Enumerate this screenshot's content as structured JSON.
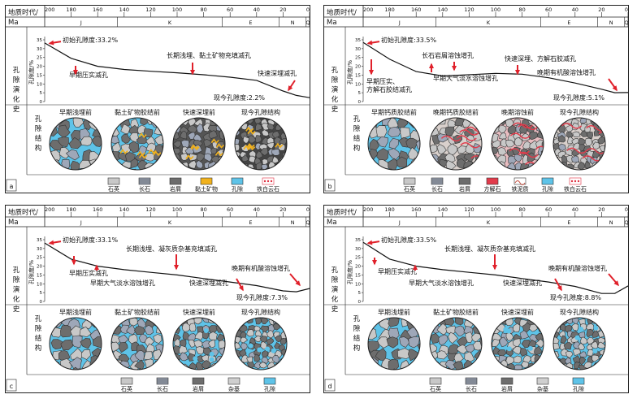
{
  "axis": {
    "era_label": "地质时代/",
    "ma_label": "Ma",
    "ticks": [
      "200",
      "180",
      "160",
      "140",
      "120",
      "100",
      "80",
      "60",
      "40",
      "20",
      "0"
    ],
    "periods": [
      "J",
      "K",
      "E",
      "N",
      "Q"
    ],
    "porosity_label": "孔隙度/%",
    "porosity_ticks": [
      "35",
      "30",
      "25",
      "20",
      "15",
      "10",
      "5",
      "0"
    ],
    "evolution_label": "孔隙演化史",
    "structure_label": "孔隙结构"
  },
  "panels": [
    {
      "letter": "a",
      "initial": "初始孔隙度:33.2%",
      "final": "现今孔隙度:2.2%",
      "porosity_curve": [
        [
          200,
          33.2
        ],
        [
          180,
          24.5
        ],
        [
          160,
          20
        ],
        [
          140,
          18.2
        ],
        [
          120,
          17.2
        ],
        [
          100,
          16.3
        ],
        [
          80,
          15.2
        ],
        [
          60,
          13.8
        ],
        [
          40,
          12
        ],
        [
          20,
          6
        ],
        [
          10,
          3.5
        ],
        [
          0,
          2.2
        ]
      ],
      "annotations": [
        "早期压实减孔",
        "长期浅埋、黏土矿物充填减孔",
        "快速深埋减孔"
      ],
      "stages": [
        "早期浅埋前",
        "黏土矿物胶结前",
        "快速深埋前",
        "现今孔隙结构"
      ],
      "legend": [
        "石英",
        "长石",
        "岩屑",
        "黏土矿物",
        "孔隙",
        "铁白云石"
      ]
    },
    {
      "letter": "b",
      "initial": "初始孔隙度:33.5%",
      "final": "现今孔隙度:5.1%",
      "porosity_curve": [
        [
          200,
          33.5
        ],
        [
          180,
          24
        ],
        [
          160,
          17
        ],
        [
          140,
          14.5
        ],
        [
          120,
          15.2
        ],
        [
          100,
          16
        ],
        [
          80,
          15.5
        ],
        [
          60,
          13.5
        ],
        [
          40,
          10.5
        ],
        [
          20,
          7
        ],
        [
          10,
          5
        ],
        [
          0,
          5.1
        ]
      ],
      "annotations": [
        "早期压实、方解石胶结减孔",
        "长石岩屑溶蚀增孔",
        "早期大气淡水溶蚀增孔",
        "快速深埋、方解石胶减孔",
        "晚期有机酸溶蚀增孔"
      ],
      "stages": [
        "早期钙质胶结前",
        "晚期钙质胶结前",
        "晚期溶蚀前",
        "现今孔隙结构"
      ],
      "legend": [
        "石英",
        "长石",
        "岩屑",
        "方解石",
        "铁泥质",
        "孔隙",
        "铁白云石"
      ]
    },
    {
      "letter": "c",
      "initial": "初始孔隙度:33.1%",
      "final": "现今孔隙度:7.3%",
      "porosity_curve": [
        [
          200,
          33.1
        ],
        [
          180,
          24
        ],
        [
          160,
          20
        ],
        [
          140,
          18
        ],
        [
          120,
          16.5
        ],
        [
          100,
          15
        ],
        [
          80,
          13
        ],
        [
          60,
          11
        ],
        [
          40,
          9
        ],
        [
          20,
          6
        ],
        [
          10,
          5.5
        ],
        [
          0,
          7.3
        ]
      ],
      "annotations": [
        "长期浅埋、凝灰质杂基充填减孔",
        "早期压实减孔",
        "早期大气淡水溶蚀增孔",
        "快速深埋减孔",
        "晚期有机酸溶蚀增孔"
      ],
      "stages": [
        "早期浅埋前",
        "黏土矿物胶结前",
        "快速深埋前",
        "现今孔隙结构"
      ],
      "legend": [
        "石英",
        "长石",
        "岩屑",
        "杂基",
        "孔隙"
      ]
    },
    {
      "letter": "d",
      "initial": "初始孔隙度:33.5%",
      "final": "现今孔隙度:8.8%",
      "porosity_curve": [
        [
          200,
          33.5
        ],
        [
          180,
          24
        ],
        [
          160,
          20
        ],
        [
          140,
          18
        ],
        [
          120,
          16.5
        ],
        [
          100,
          15
        ],
        [
          80,
          13
        ],
        [
          60,
          11
        ],
        [
          40,
          8.5
        ],
        [
          20,
          4.5
        ],
        [
          10,
          4.5
        ],
        [
          0,
          8.8
        ]
      ],
      "annotations": [
        "长期浅埋、凝灰质杂基充填减孔",
        "早期压实减孔",
        "早期大气淡水溶蚀增孔",
        "快速深埋减孔",
        "晚期有机酸溶蚀增孔"
      ],
      "stages": [
        "早期浅埋前",
        "黏土矿物胶结前",
        "快速深埋前",
        "现今孔隙结构"
      ],
      "legend": [
        "石英",
        "长石",
        "岩屑",
        "杂基",
        "孔隙"
      ]
    }
  ],
  "colors": {
    "quartz": "#c8c8c8",
    "feldspar": "#9ea7b8",
    "lithic": "#6d6d6d",
    "clay": "#f2b21c",
    "pore": "#5ec3e8",
    "calcite": "#e23b4b",
    "iron_mud": "#c24a3a",
    "matrix": "#cfcfcf",
    "ankerite": "#e03040",
    "arrow": "#e0202a",
    "curve": "#111111"
  }
}
